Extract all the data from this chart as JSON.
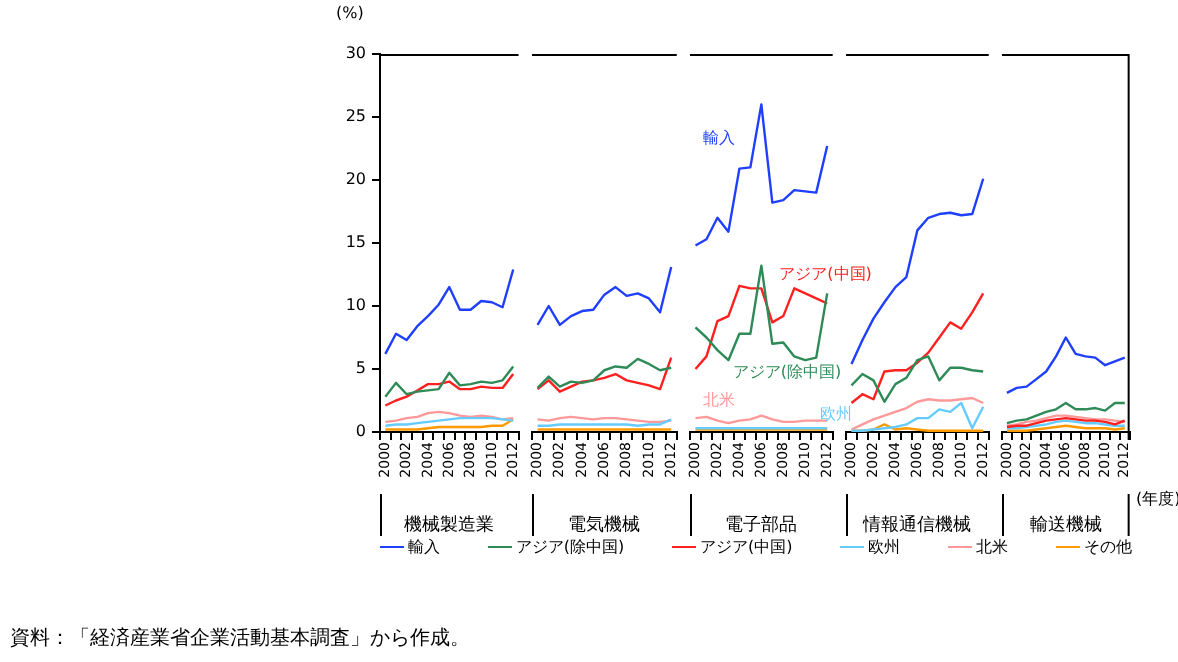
{
  "chart_data": [
    {
      "type": "line",
      "xlabel": "機械製造業",
      "ylabel": "(%)",
      "categories": [
        "2000",
        null,
        "2002",
        null,
        "2004",
        null,
        "2006",
        null,
        "2008",
        null,
        "2010",
        null,
        "2012"
      ],
      "ylim": [
        0,
        30
      ],
      "yticks": [
        0,
        5,
        10,
        15,
        20,
        25,
        30
      ],
      "legend": "bottom",
      "annotations": [
        "資料：「経済産業省企業活動基本調査」から作成。"
      ],
      "series": [
        {
          "name": "輸入",
          "color": "#1f3fff",
          "values": [
            6.2,
            7.8,
            7.3,
            8.4,
            9.2,
            10.1,
            11.5,
            9.7,
            9.7,
            10.4,
            10.3,
            9.9,
            12.9
          ]
        },
        {
          "name": "アジア(除中国)",
          "color": "#2e8b57",
          "values": [
            2.8,
            3.9,
            3.0,
            3.2,
            3.3,
            3.4,
            4.7,
            3.7,
            3.8,
            4.0,
            3.9,
            4.1,
            5.2
          ]
        },
        {
          "name": "アジア(中国)",
          "color": "#ff2020",
          "values": [
            2.1,
            2.5,
            2.8,
            3.3,
            3.8,
            3.8,
            4.0,
            3.4,
            3.4,
            3.6,
            3.5,
            3.5,
            4.6
          ]
        },
        {
          "name": "欧州",
          "color": "#66ccff",
          "values": [
            0.5,
            0.6,
            0.6,
            0.7,
            0.8,
            0.9,
            1.0,
            1.1,
            1.1,
            1.1,
            1.1,
            1.0,
            0.9
          ]
        },
        {
          "name": "北米",
          "color": "#ff9999",
          "values": [
            0.8,
            0.9,
            1.1,
            1.2,
            1.5,
            1.6,
            1.5,
            1.3,
            1.2,
            1.3,
            1.2,
            1.0,
            1.1
          ]
        },
        {
          "name": "その他",
          "color": "#ff9900",
          "values": [
            0.2,
            0.2,
            0.2,
            0.2,
            0.3,
            0.4,
            0.4,
            0.4,
            0.4,
            0.4,
            0.5,
            0.5,
            1.0
          ]
        }
      ]
    },
    {
      "type": "line",
      "xlabel": "電気機械",
      "categories": [
        "2000",
        null,
        "2002",
        null,
        "2004",
        null,
        "2006",
        null,
        "2008",
        null,
        "2010",
        null,
        "2012"
      ],
      "ylim": [
        0,
        30
      ],
      "tick_labels": "x",
      "series": [
        {
          "color": "#1f3fff",
          "values": [
            8.5,
            10.0,
            8.5,
            9.2,
            9.6,
            9.7,
            10.9,
            11.5,
            10.8,
            11.0,
            10.6,
            9.5,
            13.1
          ]
        },
        {
          "color": "#2e8b57",
          "values": [
            3.5,
            4.4,
            3.6,
            4.0,
            3.9,
            4.1,
            4.9,
            5.2,
            5.1,
            5.8,
            5.4,
            4.9,
            5.1
          ]
        },
        {
          "color": "#ff2020",
          "values": [
            3.4,
            4.1,
            3.2,
            3.6,
            4.0,
            4.1,
            4.3,
            4.6,
            4.1,
            3.9,
            3.7,
            3.4,
            5.9
          ]
        },
        {
          "color": "#66ccff",
          "values": [
            0.5,
            0.5,
            0.6,
            0.6,
            0.6,
            0.6,
            0.6,
            0.6,
            0.6,
            0.5,
            0.6,
            0.6,
            1.0
          ]
        },
        {
          "color": "#ff9999",
          "values": [
            1.0,
            0.9,
            1.1,
            1.2,
            1.1,
            1.0,
            1.1,
            1.1,
            1.0,
            0.9,
            0.8,
            0.8,
            0.9
          ]
        },
        {
          "color": "#ff9900",
          "values": [
            0.2,
            0.2,
            0.2,
            0.2,
            0.2,
            0.2,
            0.2,
            0.2,
            0.2,
            0.2,
            0.2,
            0.2,
            0.2
          ]
        }
      ]
    },
    {
      "type": "line",
      "xlabel": "電子部品",
      "categories": [
        "2000",
        null,
        "2002",
        null,
        "2004",
        null,
        "2006",
        null,
        "2008",
        null,
        "2010",
        null,
        "2012"
      ],
      "ylim": [
        0,
        30
      ],
      "tick_labels": "x",
      "series": [
        {
          "name": "輸入",
          "color": "#1f3fff",
          "values": [
            14.8,
            15.3,
            17.0,
            15.9,
            20.9,
            21.0,
            26.0,
            18.2,
            18.4,
            19.2,
            19.1,
            19.0,
            22.7
          ]
        },
        {
          "name": "アジア(除中国)",
          "color": "#2e8b57",
          "values": [
            8.3,
            7.5,
            6.5,
            5.7,
            7.8,
            7.8,
            13.2,
            7.0,
            7.1,
            6.0,
            5.7,
            5.9,
            11.0
          ]
        },
        {
          "name": "アジア(中国)",
          "color": "#ff2020",
          "values": [
            5.0,
            6.0,
            8.8,
            9.2,
            11.6,
            11.4,
            11.4,
            8.7,
            9.2,
            11.4,
            11.0,
            10.6,
            10.2
          ]
        },
        {
          "name": "欧州",
          "color": "#66ccff",
          "values": [
            0.3,
            0.3,
            0.3,
            0.3,
            0.3,
            0.3,
            0.3,
            0.3,
            0.3,
            0.3,
            0.3,
            0.3,
            0.3
          ]
        },
        {
          "name": "北米",
          "color": "#ff9999",
          "values": [
            1.1,
            1.2,
            0.9,
            0.7,
            0.9,
            1.0,
            1.3,
            1.0,
            0.8,
            0.8,
            0.9,
            0.9,
            0.9
          ]
        },
        {
          "color": "#ff9900",
          "values": [
            0.2,
            0.2,
            0.2,
            0.2,
            0.2,
            0.2,
            0.2,
            0.2,
            0.2,
            0.2,
            0.2,
            0.2,
            0.2
          ]
        }
      ]
    },
    {
      "type": "line",
      "xlabel": "情報通信機械",
      "categories": [
        "2000",
        null,
        "2002",
        null,
        "2004",
        null,
        "2006",
        null,
        "2008",
        null,
        "2010",
        null,
        "2012"
      ],
      "ylim": [
        0,
        30
      ],
      "tick_labels": "x",
      "series": [
        {
          "color": "#1f3fff",
          "values": [
            5.4,
            7.3,
            9.0,
            10.3,
            11.5,
            12.3,
            16.0,
            17.0,
            17.3,
            17.4,
            17.2,
            17.3,
            20.1
          ]
        },
        {
          "color": "#2e8b57",
          "values": [
            3.7,
            4.6,
            4.1,
            2.4,
            3.8,
            4.3,
            5.7,
            6.0,
            4.1,
            5.1,
            5.1,
            4.9,
            4.8
          ]
        },
        {
          "color": "#ff2020",
          "values": [
            2.3,
            3.0,
            2.6,
            4.8,
            4.9,
            4.9,
            5.5,
            6.3,
            7.5,
            8.7,
            8.2,
            9.5,
            11.0
          ]
        },
        {
          "color": "#66ccff",
          "values": [
            0.1,
            0.1,
            0.2,
            0.3,
            0.4,
            0.6,
            1.1,
            1.1,
            1.8,
            1.6,
            2.3,
            0.3,
            2.0
          ]
        },
        {
          "color": "#ff9999",
          "values": [
            0.2,
            0.6,
            1.0,
            1.3,
            1.6,
            1.9,
            2.4,
            2.6,
            2.5,
            2.5,
            2.6,
            2.7,
            2.3
          ]
        },
        {
          "color": "#ff9900",
          "values": [
            0.1,
            0.1,
            0.2,
            0.6,
            0.2,
            0.3,
            0.2,
            0.1,
            0.1,
            0.1,
            0.1,
            0.1,
            0.1
          ]
        }
      ]
    },
    {
      "type": "line",
      "xlabel": "輸送機械",
      "categories": [
        "2000",
        null,
        "2002",
        null,
        "2004",
        null,
        "2006",
        null,
        "2008",
        null,
        "2010",
        null,
        "2012"
      ],
      "ylim": [
        0,
        30
      ],
      "tick_labels": "x",
      "annotations": [
        "(年度)"
      ],
      "series": [
        {
          "color": "#1f3fff",
          "values": [
            3.1,
            3.5,
            3.6,
            4.2,
            4.8,
            6.0,
            7.5,
            6.2,
            6.0,
            5.9,
            5.3,
            5.6,
            5.9
          ]
        },
        {
          "color": "#2e8b57",
          "values": [
            0.7,
            0.9,
            1.0,
            1.3,
            1.6,
            1.8,
            2.3,
            1.8,
            1.8,
            1.9,
            1.7,
            2.3,
            2.3
          ]
        },
        {
          "color": "#ff2020",
          "values": [
            0.4,
            0.5,
            0.5,
            0.7,
            0.9,
            1.0,
            1.1,
            1.0,
            0.9,
            0.9,
            0.8,
            0.6,
            0.9
          ]
        },
        {
          "color": "#66ccff",
          "values": [
            0.3,
            0.3,
            0.4,
            0.5,
            0.6,
            0.8,
            0.9,
            0.8,
            0.7,
            0.7,
            0.6,
            0.5,
            0.5
          ]
        },
        {
          "color": "#ff9999",
          "values": [
            0.5,
            0.6,
            0.8,
            0.9,
            1.1,
            1.3,
            1.3,
            1.2,
            1.1,
            1.0,
            1.0,
            0.9,
            0.8
          ]
        },
        {
          "color": "#ff9900",
          "values": [
            0.1,
            0.1,
            0.1,
            0.2,
            0.3,
            0.4,
            0.5,
            0.4,
            0.3,
            0.3,
            0.3,
            0.2,
            0.3
          ]
        }
      ]
    }
  ]
}
